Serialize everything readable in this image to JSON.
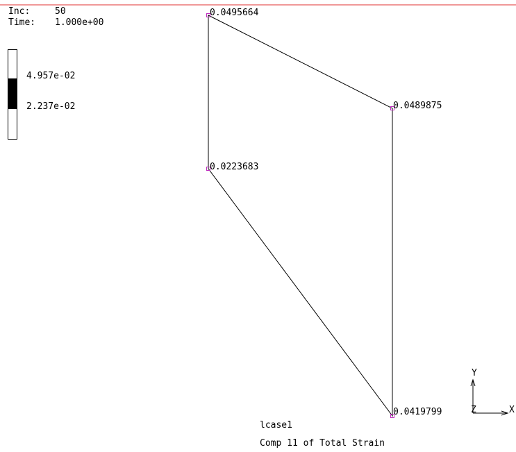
{
  "header": {
    "inc_label": "Inc:",
    "inc": "50",
    "time_label": "Time:",
    "time": "1.000e+00"
  },
  "legend": {
    "labels": [
      "4.957e-02",
      "2.237e-02"
    ]
  },
  "nodes": [
    {
      "label": "0.0495664"
    },
    {
      "label": "0.0489875"
    },
    {
      "label": "0.0223683"
    },
    {
      "label": "0.0419799"
    }
  ],
  "triad": {
    "y": "Y",
    "z": "Z",
    "x": "X"
  },
  "footer": {
    "case": "lcase1",
    "component": "Comp 11 of Total Strain"
  }
}
